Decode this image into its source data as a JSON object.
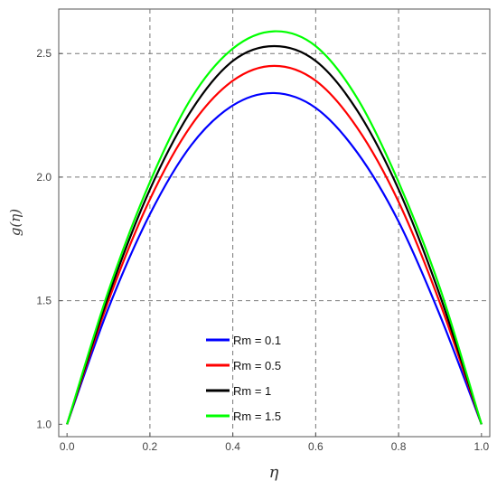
{
  "chart_data": {
    "type": "line",
    "xlabel": "η",
    "ylabel": "g(η)",
    "xlim": [
      -0.02,
      1.02
    ],
    "ylim": [
      0.95,
      2.68
    ],
    "xticks": [
      0.0,
      0.2,
      0.4,
      0.6,
      0.8,
      1.0
    ],
    "xtick_labels": [
      "0.0",
      "0.2",
      "0.4",
      "0.6",
      "0.8",
      "1.0"
    ],
    "yticks": [
      1.0,
      1.5,
      2.0,
      2.5
    ],
    "ytick_labels": [
      "1.0",
      "1.5",
      "2.0",
      "2.5"
    ],
    "grid": true,
    "grid_style": "dashed",
    "legend_position": "lower-center",
    "x": [
      0.0,
      0.1,
      0.2,
      0.3,
      0.4,
      0.5,
      0.6,
      0.7,
      0.8,
      0.9,
      1.0
    ],
    "series": [
      {
        "name": "Rm = 0.1",
        "color": "#0000ff",
        "values": [
          1.0,
          1.47,
          1.85,
          2.13,
          2.29,
          2.34,
          2.28,
          2.1,
          1.82,
          1.44,
          1.0
        ]
      },
      {
        "name": "Rm = 0.5",
        "color": "#ff0000",
        "values": [
          1.0,
          1.5,
          1.91,
          2.21,
          2.39,
          2.45,
          2.39,
          2.2,
          1.9,
          1.49,
          1.0
        ]
      },
      {
        "name": "Rm = 1",
        "color": "#000000",
        "values": [
          1.0,
          1.52,
          1.95,
          2.27,
          2.47,
          2.53,
          2.47,
          2.27,
          1.95,
          1.52,
          1.0
        ]
      },
      {
        "name": "Rm = 1.5",
        "color": "#00ff00",
        "values": [
          1.0,
          1.54,
          1.98,
          2.32,
          2.52,
          2.59,
          2.53,
          2.32,
          1.98,
          1.55,
          1.0
        ]
      }
    ]
  }
}
